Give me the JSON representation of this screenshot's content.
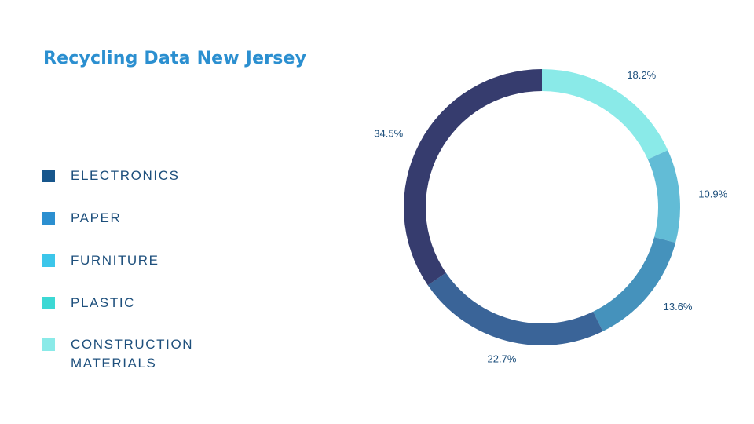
{
  "title": "Recycling Data New Jersey",
  "legend": [
    {
      "label": "ELECTRONICS",
      "color": "#17568c"
    },
    {
      "label": "PAPER",
      "color": "#2b8fd0"
    },
    {
      "label": "FURNITURE",
      "color": "#3cc6ea"
    },
    {
      "label": "PLASTIC",
      "color": "#3cd8d4"
    },
    {
      "label": "CONSTRUCTION MATERIALS",
      "color": "#8aeae8"
    }
  ],
  "chart_data": {
    "type": "pie",
    "title": "Recycling Data New Jersey",
    "donut": true,
    "slices": [
      {
        "label": "18.2%",
        "value": 18.2,
        "color": "#8aeae8"
      },
      {
        "label": "10.9%",
        "value": 10.9,
        "color": "#62bcd6"
      },
      {
        "label": "13.6%",
        "value": 13.6,
        "color": "#4592bc"
      },
      {
        "label": "22.7%",
        "value": 22.7,
        "color": "#3a6498"
      },
      {
        "label": "34.5%",
        "value": 34.5,
        "color": "#363c6e"
      }
    ],
    "start_angle_deg": 0,
    "direction": "clockwise"
  }
}
